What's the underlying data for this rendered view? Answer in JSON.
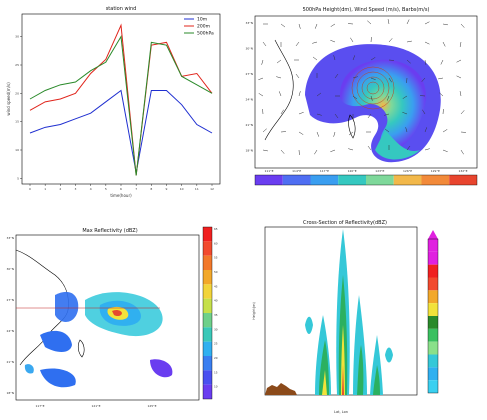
{
  "chart_data": [
    {
      "type": "line",
      "title": "station wind",
      "xlabel": "time(hour)",
      "ylabel": "wind speed(m/s)",
      "x": [
        0,
        1,
        2,
        3,
        4,
        5,
        6,
        7,
        8,
        9,
        10,
        11,
        12
      ],
      "series": [
        {
          "name": "10m",
          "color": "#1f2fd0",
          "values": [
            13,
            14,
            14.5,
            15.5,
            16.5,
            18.5,
            20.5,
            6,
            20.5,
            20.5,
            18,
            14.5,
            13
          ]
        },
        {
          "name": "200m",
          "color": "#e0241b",
          "values": [
            17,
            18.5,
            19,
            20,
            23.5,
            26,
            32,
            5.5,
            28.5,
            29,
            23,
            23.5,
            20
          ]
        },
        {
          "name": "500hPa",
          "color": "#2a8a2a",
          "values": [
            19,
            20.5,
            21.5,
            22,
            24,
            25.5,
            30,
            5.5,
            29,
            28.5,
            23,
            21.5,
            20
          ]
        }
      ],
      "ylim": [
        4,
        34
      ],
      "legend_position": "top-right",
      "grid": false
    },
    {
      "type": "heatmap",
      "title": "500hPa Height(dm), Wind Speed (m/s), Barbs(m/s)",
      "lon_ticks": [
        "111°E",
        "114°E",
        "117°E",
        "120°E",
        "123°E",
        "126°E",
        "129°E",
        "132°E"
      ],
      "lat_ticks": [
        "33°N",
        "30°N",
        "27°N",
        "24°N",
        "21°N",
        "18°N"
      ],
      "colorbar_colors": [
        "#6a3df0",
        "#4f6ef2",
        "#3a9ef0",
        "#35c8c0",
        "#7ed89a",
        "#f2b84a",
        "#f28a3a",
        "#e8452e"
      ]
    },
    {
      "type": "heatmap",
      "title": "Max Reflectivity (dBZ)",
      "lon_ticks": [
        "117°E",
        "121°E",
        "125°E"
      ],
      "lat_ticks": [
        "33°N",
        "30°N",
        "27°N",
        "24°N",
        "21°N",
        "18°N"
      ],
      "colorbar_ticks": [
        "65",
        "60",
        "55",
        "50",
        "45",
        "40",
        "35",
        "30",
        "25",
        "20",
        "15",
        "10"
      ]
    },
    {
      "type": "heatmap",
      "title": "Cross-Section of Reflectivity(dBZ)",
      "xlabel": "Lat, Lon",
      "ylabel": "Height(m)"
    }
  ]
}
